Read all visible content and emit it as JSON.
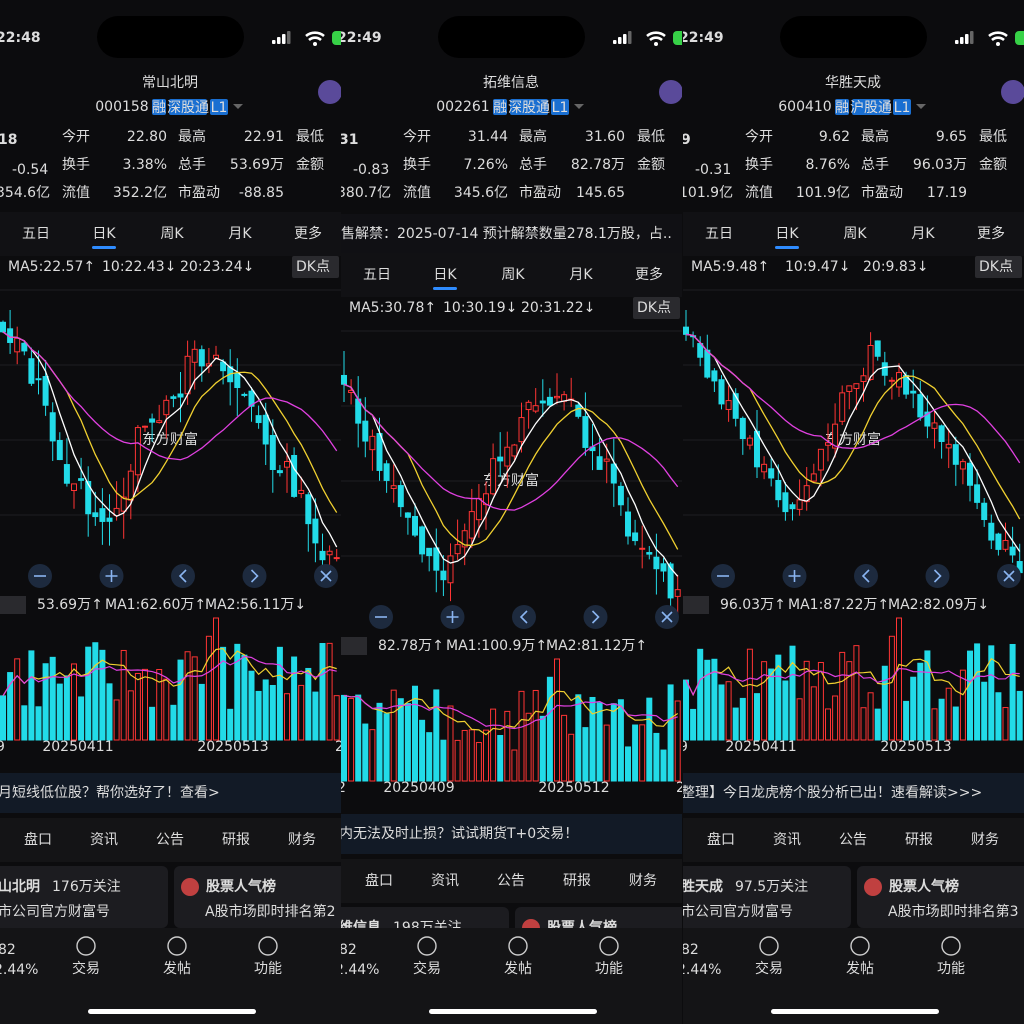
{
  "panels": [
    {
      "time": "22:48",
      "name": "常山北明",
      "code": "000158",
      "tags": [
        "融",
        "深股通",
        "L1"
      ],
      "price": "18",
      "change": "-0.54",
      "cap": "354.6亿",
      "quote": [
        [
          {
            "label": "今开",
            "value": "22.80"
          },
          {
            "label": "最高",
            "value": "22.91"
          },
          {
            "label": "最低"
          }
        ],
        [
          {
            "label": "换手",
            "value": "3.38%"
          },
          {
            "label": "总手",
            "value": "53.69万"
          },
          {
            "label": "金额"
          }
        ],
        [
          {
            "label": "流值",
            "value": "352.2亿"
          },
          {
            "label": "市盈动",
            "value": "-88.85"
          }
        ]
      ],
      "tabs": [
        "五日",
        "日K",
        "周K",
        "月K",
        "更多"
      ],
      "ma": [
        "MA5:22.57↑",
        "10:22.43↓",
        "20:23.24↓"
      ],
      "dk": "DK点",
      "watermark": "东方财富",
      "vol": [
        "53.69万↑",
        "MA1:62.60万↑",
        "MA2:56.11万↓"
      ],
      "dates": [
        "9",
        "20250411",
        "20250513",
        "2"
      ],
      "banner": "月短线低位股？帮你选好了！查看>",
      "sections": [
        "盘口",
        "资讯",
        "公告",
        "研报",
        "财务"
      ],
      "cards": [
        {
          "title": "山北明",
          "sub": "176万关注",
          "desc": "市公司官方财富号"
        },
        {
          "title": "股票人气榜",
          "desc": "A股市场即时排名第2"
        }
      ],
      "nav": {
        "quote": "82",
        "pct": "2.44%",
        "items": [
          "交易",
          "发帖",
          "功能"
        ]
      }
    },
    {
      "time": "22:49",
      "name": "拓维信息",
      "code": "002261",
      "tags": [
        "融",
        "深股通",
        "L1"
      ],
      "price": "31",
      "change": "-0.83",
      "cap": "380.7亿",
      "quote": [
        [
          {
            "label": "今开",
            "value": "31.44"
          },
          {
            "label": "最高",
            "value": "31.60"
          },
          {
            "label": "最低"
          }
        ],
        [
          {
            "label": "换手",
            "value": "7.26%"
          },
          {
            "label": "总手",
            "value": "82.78万"
          },
          {
            "label": "金额"
          }
        ],
        [
          {
            "label": "流值",
            "value": "345.6亿"
          },
          {
            "label": "市盈动",
            "value": "145.65"
          }
        ]
      ],
      "notice": "售解禁：2025-07-14 预计解禁数量278.1万股，占..",
      "tabs": [
        "五日",
        "日K",
        "周K",
        "月K",
        "更多"
      ],
      "ma": [
        "MA5:30.78↑",
        "10:30.19↓",
        "20:31.22↓"
      ],
      "dk": "DK点",
      "watermark": "东方财富",
      "vol": [
        "82.78万↑",
        "MA1:100.9万↑",
        "MA2:81.12万↑"
      ],
      "dates": [
        "2",
        "20250409",
        "20250512",
        "2"
      ],
      "banner": "内无法及时止损？试试期货T+0交易！",
      "sections": [
        "盘口",
        "资讯",
        "公告",
        "研报",
        "财务"
      ],
      "cards": [
        {
          "title": "维信息",
          "sub": "198万关注"
        },
        {
          "title": "股票人气榜"
        }
      ],
      "nav": {
        "quote": "82",
        "pct": "2.44%",
        "items": [
          "交易",
          "发帖",
          "功能"
        ]
      }
    },
    {
      "time": "22:49",
      "name": "华胜天成",
      "code": "600410",
      "tags": [
        "融",
        "沪股通",
        "L1"
      ],
      "price": "9",
      "change": "-0.31",
      "cap": "101.9亿",
      "quote": [
        [
          {
            "label": "今开",
            "value": "9.62"
          },
          {
            "label": "最高",
            "value": "9.65"
          },
          {
            "label": "最低"
          }
        ],
        [
          {
            "label": "换手",
            "value": "8.76%"
          },
          {
            "label": "总手",
            "value": "96.03万"
          },
          {
            "label": "金额"
          }
        ],
        [
          {
            "label": "流值",
            "value": "101.9亿"
          },
          {
            "label": "市盈动",
            "value": "17.19"
          }
        ]
      ],
      "tabs": [
        "五日",
        "日K",
        "周K",
        "月K",
        "更多"
      ],
      "ma": [
        "MA5:9.48↑",
        "10:9.47↓",
        "20:9.83↓"
      ],
      "dk": "DK点",
      "watermark": "东方财富",
      "vol": [
        "96.03万↑",
        "MA1:87.22万↑",
        "MA2:82.09万↓"
      ],
      "dates": [
        "9",
        "20250411",
        "20250513"
      ],
      "banner": "整理】今日龙虎榜个股分析已出！速看解读>>>",
      "sections": [
        "盘口",
        "资讯",
        "公告",
        "研报",
        "财务"
      ],
      "cards": [
        {
          "title": "胜天成",
          "sub": "97.5万关注",
          "desc": "市公司官方财富号"
        },
        {
          "title": "股票人气榜",
          "desc": "A股市场即时排名第3"
        }
      ],
      "nav": {
        "quote": "82",
        "pct": "2.44%",
        "items": [
          "交易",
          "发帖",
          "功能"
        ]
      }
    }
  ]
}
